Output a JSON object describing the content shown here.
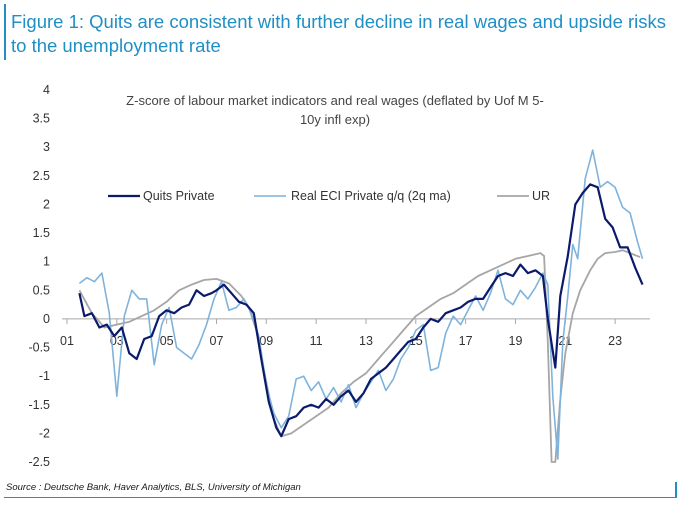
{
  "figure": {
    "title": "Figure 1: Quits are consistent with further decline in real wages and upside risks to the unemployment rate",
    "source": "Source : Deutsche Bank, Haver Analytics, BLS, University of Michigan"
  },
  "chart_data": {
    "type": "line",
    "title": "Z-score of labour market indicators and real wages (deflated by Uof M 5-10y infl exp)",
    "title_lines": [
      "Z-score of labour market indicators and real wages (deflated by Uof M 5-",
      "10y infl exp)"
    ],
    "xlabel": "",
    "ylabel": "",
    "xlim": [
      2000.8,
      2024.4
    ],
    "ylim": [
      -2.5,
      4
    ],
    "y_ticks": [
      -2.5,
      -2,
      -1.5,
      -1,
      -0.5,
      0,
      0.5,
      1,
      1.5,
      2,
      2.5,
      3,
      3.5,
      4
    ],
    "y_tick_labels": [
      "-2.5",
      "-2",
      "-1.5",
      "-1",
      "-0.5",
      "0",
      "0.5",
      "1",
      "1.5",
      "2",
      "2.5",
      "3",
      "3.5",
      "4"
    ],
    "x_tick_values": [
      2001,
      2003,
      2005,
      2007,
      2009,
      2011,
      2013,
      2015,
      2017,
      2019,
      2021,
      2023
    ],
    "x_tick_labels": [
      "01",
      "03",
      "05",
      "07",
      "09",
      "11",
      "13",
      "15",
      "17",
      "19",
      "21",
      "23"
    ],
    "grid": false,
    "legend_position": "upper-center",
    "colors": {
      "quits": "#0b1a6b",
      "eci": "#7fb3dc",
      "ur": "#a6a6a6",
      "axis": "#a6a6a6"
    },
    "series": [
      {
        "name": "Quits Private",
        "x": [
          2001.5,
          2001.7,
          2002.0,
          2002.3,
          2002.6,
          2002.9,
          2003.2,
          2003.5,
          2003.8,
          2004.1,
          2004.4,
          2004.7,
          2005.0,
          2005.3,
          2005.6,
          2005.9,
          2006.2,
          2006.5,
          2006.8,
          2007.0,
          2007.3,
          2007.6,
          2007.9,
          2008.2,
          2008.5,
          2008.8,
          2009.1,
          2009.4,
          2009.6,
          2009.9,
          2010.2,
          2010.5,
          2010.8,
          2011.1,
          2011.4,
          2011.7,
          2012.0,
          2012.3,
          2012.6,
          2012.9,
          2013.2,
          2013.5,
          2013.8,
          2014.1,
          2014.4,
          2014.7,
          2015.0,
          2015.3,
          2015.6,
          2015.9,
          2016.2,
          2016.5,
          2016.8,
          2017.1,
          2017.4,
          2017.7,
          2018.0,
          2018.3,
          2018.6,
          2018.9,
          2019.2,
          2019.5,
          2019.8,
          2020.1,
          2020.3,
          2020.6,
          2020.8,
          2021.1,
          2021.4,
          2021.7,
          2022.0,
          2022.3,
          2022.6,
          2022.9,
          2023.2,
          2023.5,
          2023.8,
          2024.1
        ],
        "y": [
          0.45,
          0.05,
          0.1,
          -0.15,
          -0.1,
          -0.3,
          -0.15,
          -0.6,
          -0.7,
          -0.35,
          -0.3,
          0.05,
          0.15,
          0.1,
          0.2,
          0.25,
          0.5,
          0.4,
          0.45,
          0.5,
          0.6,
          0.45,
          0.3,
          0.25,
          0.1,
          -0.7,
          -1.45,
          -1.9,
          -2.05,
          -1.75,
          -1.7,
          -1.55,
          -1.5,
          -1.55,
          -1.4,
          -1.5,
          -1.35,
          -1.25,
          -1.45,
          -1.3,
          -1.05,
          -0.95,
          -0.85,
          -0.7,
          -0.55,
          -0.4,
          -0.35,
          -0.15,
          0.0,
          -0.05,
          0.1,
          0.15,
          0.2,
          0.3,
          0.35,
          0.35,
          0.55,
          0.75,
          0.8,
          0.75,
          0.95,
          0.8,
          0.85,
          0.75,
          0.0,
          -0.85,
          0.4,
          1.1,
          2.0,
          2.2,
          2.35,
          2.3,
          1.75,
          1.6,
          1.25,
          1.25,
          0.9,
          0.6
        ]
      },
      {
        "name": "Real ECI Private q/q (2q ma)",
        "x": [
          2001.5,
          2001.8,
          2002.1,
          2002.4,
          2002.7,
          2003.0,
          2003.3,
          2003.6,
          2003.9,
          2004.2,
          2004.5,
          2004.8,
          2005.1,
          2005.4,
          2005.7,
          2006.0,
          2006.3,
          2006.6,
          2006.9,
          2007.2,
          2007.5,
          2007.8,
          2008.1,
          2008.4,
          2008.7,
          2009.0,
          2009.3,
          2009.6,
          2009.9,
          2010.2,
          2010.5,
          2010.8,
          2011.1,
          2011.4,
          2011.7,
          2012.0,
          2012.3,
          2012.6,
          2012.9,
          2013.2,
          2013.5,
          2013.8,
          2014.1,
          2014.4,
          2014.7,
          2015.0,
          2015.3,
          2015.6,
          2015.9,
          2016.2,
          2016.5,
          2016.8,
          2017.1,
          2017.4,
          2017.7,
          2018.0,
          2018.3,
          2018.6,
          2018.9,
          2019.2,
          2019.5,
          2019.8,
          2020.1,
          2020.3,
          2020.5,
          2020.7,
          2020.9,
          2021.1,
          2021.3,
          2021.5,
          2021.8,
          2022.1,
          2022.4,
          2022.7,
          2023.0,
          2023.3,
          2023.6,
          2023.9,
          2024.1
        ],
        "y": [
          0.62,
          0.72,
          0.65,
          0.8,
          0.1,
          -1.35,
          0.05,
          0.5,
          0.35,
          0.35,
          -0.8,
          -0.1,
          0.2,
          -0.5,
          -0.6,
          -0.7,
          -0.45,
          -0.1,
          0.35,
          0.65,
          0.15,
          0.2,
          0.35,
          0.1,
          -0.3,
          -1.15,
          -1.65,
          -1.9,
          -1.7,
          -1.05,
          -1.0,
          -1.25,
          -1.1,
          -1.4,
          -1.2,
          -1.45,
          -1.15,
          -1.55,
          -1.3,
          -1.1,
          -0.9,
          -1.25,
          -1.05,
          -0.7,
          -0.5,
          -0.2,
          -0.1,
          -0.9,
          -0.85,
          -0.25,
          0.05,
          -0.1,
          0.15,
          0.4,
          0.15,
          0.45,
          0.85,
          0.35,
          0.25,
          0.5,
          0.35,
          0.55,
          0.8,
          0.6,
          -1.35,
          -2.45,
          -0.4,
          0.4,
          1.3,
          1.05,
          2.45,
          2.95,
          2.3,
          2.4,
          2.3,
          1.95,
          1.85,
          1.35,
          1.05
        ]
      },
      {
        "name": "UR",
        "x": [
          2001.5,
          2002.0,
          2002.5,
          2003.0,
          2003.5,
          2004.0,
          2004.5,
          2005.0,
          2005.5,
          2006.0,
          2006.5,
          2007.0,
          2007.5,
          2008.0,
          2008.3,
          2008.6,
          2009.0,
          2009.3,
          2009.6,
          2010.0,
          2010.5,
          2011.0,
          2011.5,
          2012.0,
          2012.5,
          2013.0,
          2013.5,
          2014.0,
          2014.5,
          2015.0,
          2015.5,
          2016.0,
          2016.5,
          2017.0,
          2017.5,
          2018.0,
          2018.5,
          2019.0,
          2019.5,
          2020.0,
          2020.15,
          2020.3,
          2020.45,
          2020.6,
          2020.8,
          2021.0,
          2021.3,
          2021.6,
          2022.0,
          2022.3,
          2022.6,
          2023.0,
          2023.3,
          2023.6,
          2024.0
        ],
        "y": [
          0.5,
          0.1,
          -0.15,
          -0.1,
          -0.05,
          0.05,
          0.15,
          0.3,
          0.5,
          0.6,
          0.68,
          0.7,
          0.62,
          0.4,
          0.2,
          -0.2,
          -1.1,
          -1.75,
          -2.05,
          -2.0,
          -1.85,
          -1.7,
          -1.55,
          -1.3,
          -1.1,
          -0.95,
          -0.7,
          -0.45,
          -0.2,
          0.05,
          0.2,
          0.35,
          0.45,
          0.6,
          0.75,
          0.85,
          0.95,
          1.05,
          1.1,
          1.15,
          1.1,
          -0.4,
          -2.5,
          -2.5,
          -1.4,
          -0.6,
          0.1,
          0.5,
          0.85,
          1.05,
          1.15,
          1.17,
          1.2,
          1.15,
          1.08
        ]
      }
    ]
  }
}
